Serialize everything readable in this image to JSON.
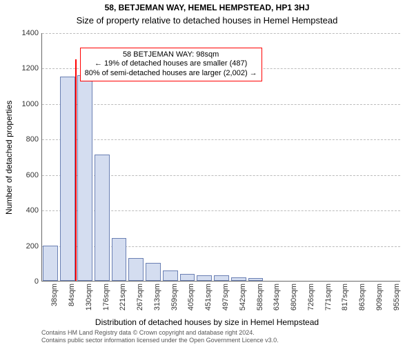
{
  "titles": {
    "line1": "58, BETJEMAN WAY, HEMEL HEMPSTEAD, HP1 3HJ",
    "line2": "Size of property relative to detached houses in Hemel Hempstead"
  },
  "axes": {
    "ylabel": "Number of detached properties",
    "xlabel": "Distribution of detached houses by size in Hemel Hempstead",
    "label_fontsize": 12,
    "tick_fontsize": 11,
    "tick_color": "#333333"
  },
  "footer": {
    "line1": "Contains HM Land Registry data © Crown copyright and database right 2024.",
    "line2": "Contains public sector information licensed under the Open Government Licence v3.0.",
    "fontsize": 9,
    "color": "#555555"
  },
  "chart": {
    "type": "histogram",
    "ylim": [
      0,
      1400
    ],
    "ytick_step": 200,
    "grid_color": "#bbbbbb",
    "bar_fill": "#d4ddf0",
    "bar_border": "#6a7fb3",
    "x_tick_labels": [
      "38sqm",
      "84sqm",
      "130sqm",
      "176sqm",
      "221sqm",
      "267sqm",
      "313sqm",
      "359sqm",
      "405sqm",
      "451sqm",
      "497sqm",
      "542sqm",
      "588sqm",
      "634sqm",
      "680sqm",
      "726sqm",
      "771sqm",
      "817sqm",
      "863sqm",
      "909sqm",
      "955sqm"
    ],
    "values": [
      200,
      1150,
      1160,
      710,
      240,
      130,
      100,
      60,
      40,
      30,
      30,
      20,
      15,
      0,
      0,
      0,
      0,
      0,
      0,
      0,
      0
    ]
  },
  "marker": {
    "x_position_pct": 9.3,
    "color": "#ff0000",
    "height_value": 1250
  },
  "annotation": {
    "line1": "58 BETJEMAN WAY: 98sqm",
    "line2": "← 19% of detached houses are smaller (487)",
    "line3": "80% of semi-detached houses are larger (2,002) →",
    "border_color": "#ff0000",
    "fontsize": 11,
    "left_pct": 10.5,
    "top_value": 1320
  },
  "title_style": {
    "fontsize1": 12,
    "fontsize2": 13,
    "color": "#000000"
  }
}
